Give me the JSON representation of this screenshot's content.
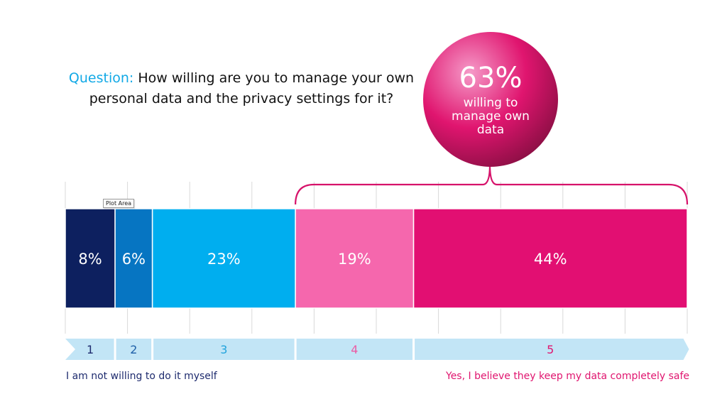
{
  "question": {
    "label": "Question:",
    "text": " How willing are you to manage your own personal data and the privacy settings for it?"
  },
  "tooltip": "Plot Area",
  "bubble": {
    "value": "63%",
    "caption": "willing to manage own data",
    "colors": [
      "#f59ac8",
      "#e0156f",
      "#8f0f46"
    ]
  },
  "scale_labels": {
    "left": "I am not willing to do it myself",
    "right": "Yes, I believe they keep my data completely safe"
  },
  "colors": {
    "scale_band": "#c2e5f6",
    "bracket": "#d6126a",
    "gridline": "#d9d9d9"
  },
  "chart_data": {
    "type": "bar",
    "orientation": "horizontal-stacked",
    "categories": [
      "1",
      "2",
      "3",
      "4",
      "5"
    ],
    "values": [
      8,
      6,
      23,
      19,
      44
    ],
    "data_labels": [
      "8%",
      "6%",
      "23%",
      "19%",
      "44%"
    ],
    "colors": [
      "#0d205f",
      "#0675c2",
      "#00aeef",
      "#f567ad",
      "#e20f72"
    ],
    "scale_label_colors": [
      "#1e2b6e",
      "#1e5fa8",
      "#21a3dc",
      "#ec5aa3",
      "#e0156f"
    ],
    "xlim": [
      0,
      100
    ],
    "grid": true,
    "bracket": {
      "from_category": "4",
      "to_category": "5",
      "value": 63
    }
  }
}
